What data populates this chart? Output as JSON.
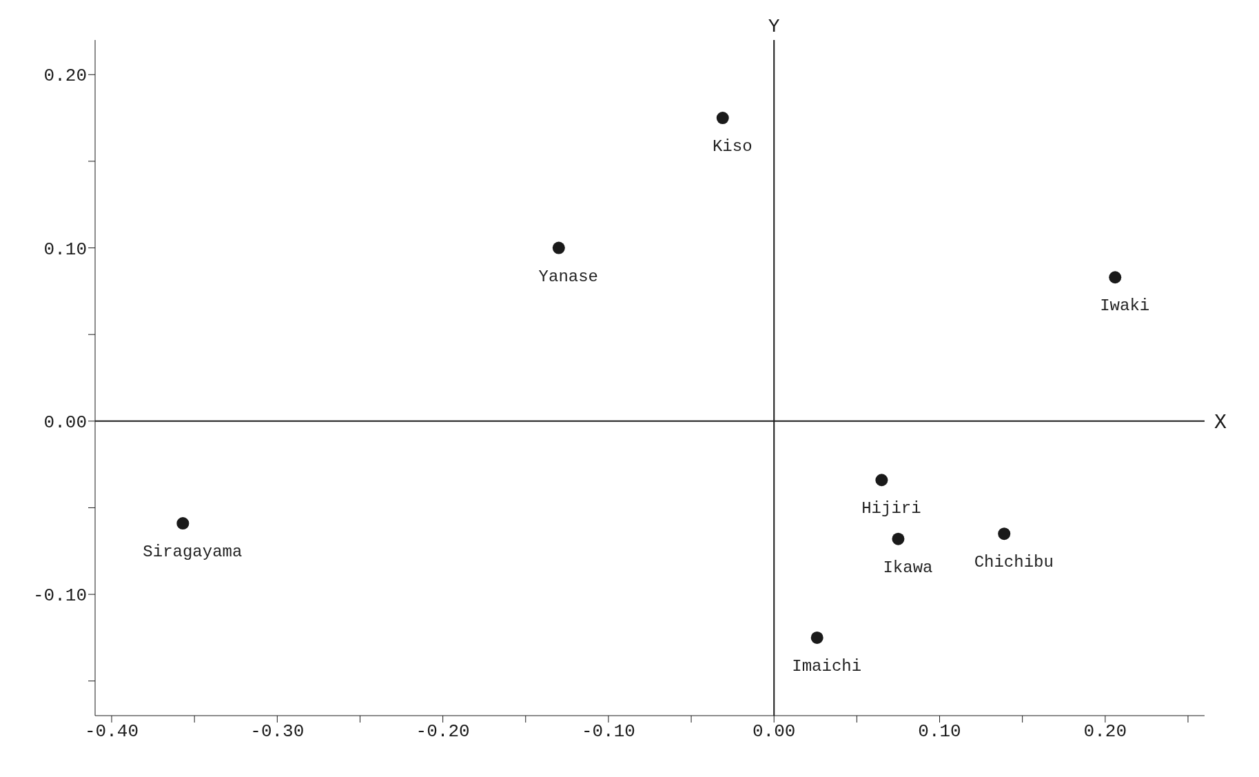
{
  "chart_data": {
    "type": "scatter",
    "xlim": [
      -0.41,
      0.26
    ],
    "ylim": [
      -0.17,
      0.22
    ],
    "xticks": [
      {
        "value": -0.4,
        "label": "-0.40"
      },
      {
        "value": -0.35,
        "label": null
      },
      {
        "value": -0.3,
        "label": "-0.30"
      },
      {
        "value": -0.25,
        "label": null
      },
      {
        "value": -0.2,
        "label": "-0.20"
      },
      {
        "value": -0.15,
        "label": null
      },
      {
        "value": -0.1,
        "label": "-0.10"
      },
      {
        "value": -0.05,
        "label": null
      },
      {
        "value": 0,
        "label": "0.00"
      },
      {
        "value": 0.05,
        "label": null
      },
      {
        "value": 0.1,
        "label": "0.10"
      },
      {
        "value": 0.15,
        "label": null
      },
      {
        "value": 0.2,
        "label": "0.20"
      },
      {
        "value": 0.25,
        "label": null
      }
    ],
    "yticks": [
      {
        "value": -0.15,
        "label": null
      },
      {
        "value": -0.1,
        "label": "-0.10"
      },
      {
        "value": -0.05,
        "label": null
      },
      {
        "value": 0,
        "label": "0.00"
      },
      {
        "value": 0.05,
        "label": null
      },
      {
        "value": 0.1,
        "label": "0.10"
      },
      {
        "value": 0.15,
        "label": null
      },
      {
        "value": 0.2,
        "label": "0.20"
      }
    ],
    "grid": false,
    "legend": false,
    "marker": "circle",
    "ref_lines": [
      {
        "axis": "x",
        "value": 0,
        "label": "Y",
        "color": "#1a1a1a"
      },
      {
        "axis": "y",
        "value": 0,
        "label": "X",
        "color": "#1a1a1a"
      }
    ],
    "series": [
      {
        "name": "Kiso",
        "color": "#1a1a1a",
        "x": [
          -0.031
        ],
        "values": [
          0.175
        ]
      },
      {
        "name": "Yanase",
        "color": "#1a1a1a",
        "x": [
          -0.13
        ],
        "values": [
          0.1
        ]
      },
      {
        "name": "Iwaki",
        "color": "#1a1a1a",
        "x": [
          0.206
        ],
        "values": [
          0.083
        ]
      },
      {
        "name": "Hijiri",
        "color": "#1a1a1a",
        "x": [
          0.065
        ],
        "values": [
          -0.034
        ]
      },
      {
        "name": "Ikawa",
        "color": "#1a1a1a",
        "x": [
          0.075
        ],
        "values": [
          -0.068
        ]
      },
      {
        "name": "Chichibu",
        "color": "#1a1a1a",
        "x": [
          0.139
        ],
        "values": [
          -0.065
        ]
      },
      {
        "name": "Imaichi",
        "color": "#1a1a1a",
        "x": [
          0.026
        ],
        "values": [
          -0.125
        ]
      },
      {
        "name": "Siragayama",
        "color": "#1a1a1a",
        "x": [
          -0.357
        ],
        "values": [
          -0.059
        ]
      }
    ]
  }
}
